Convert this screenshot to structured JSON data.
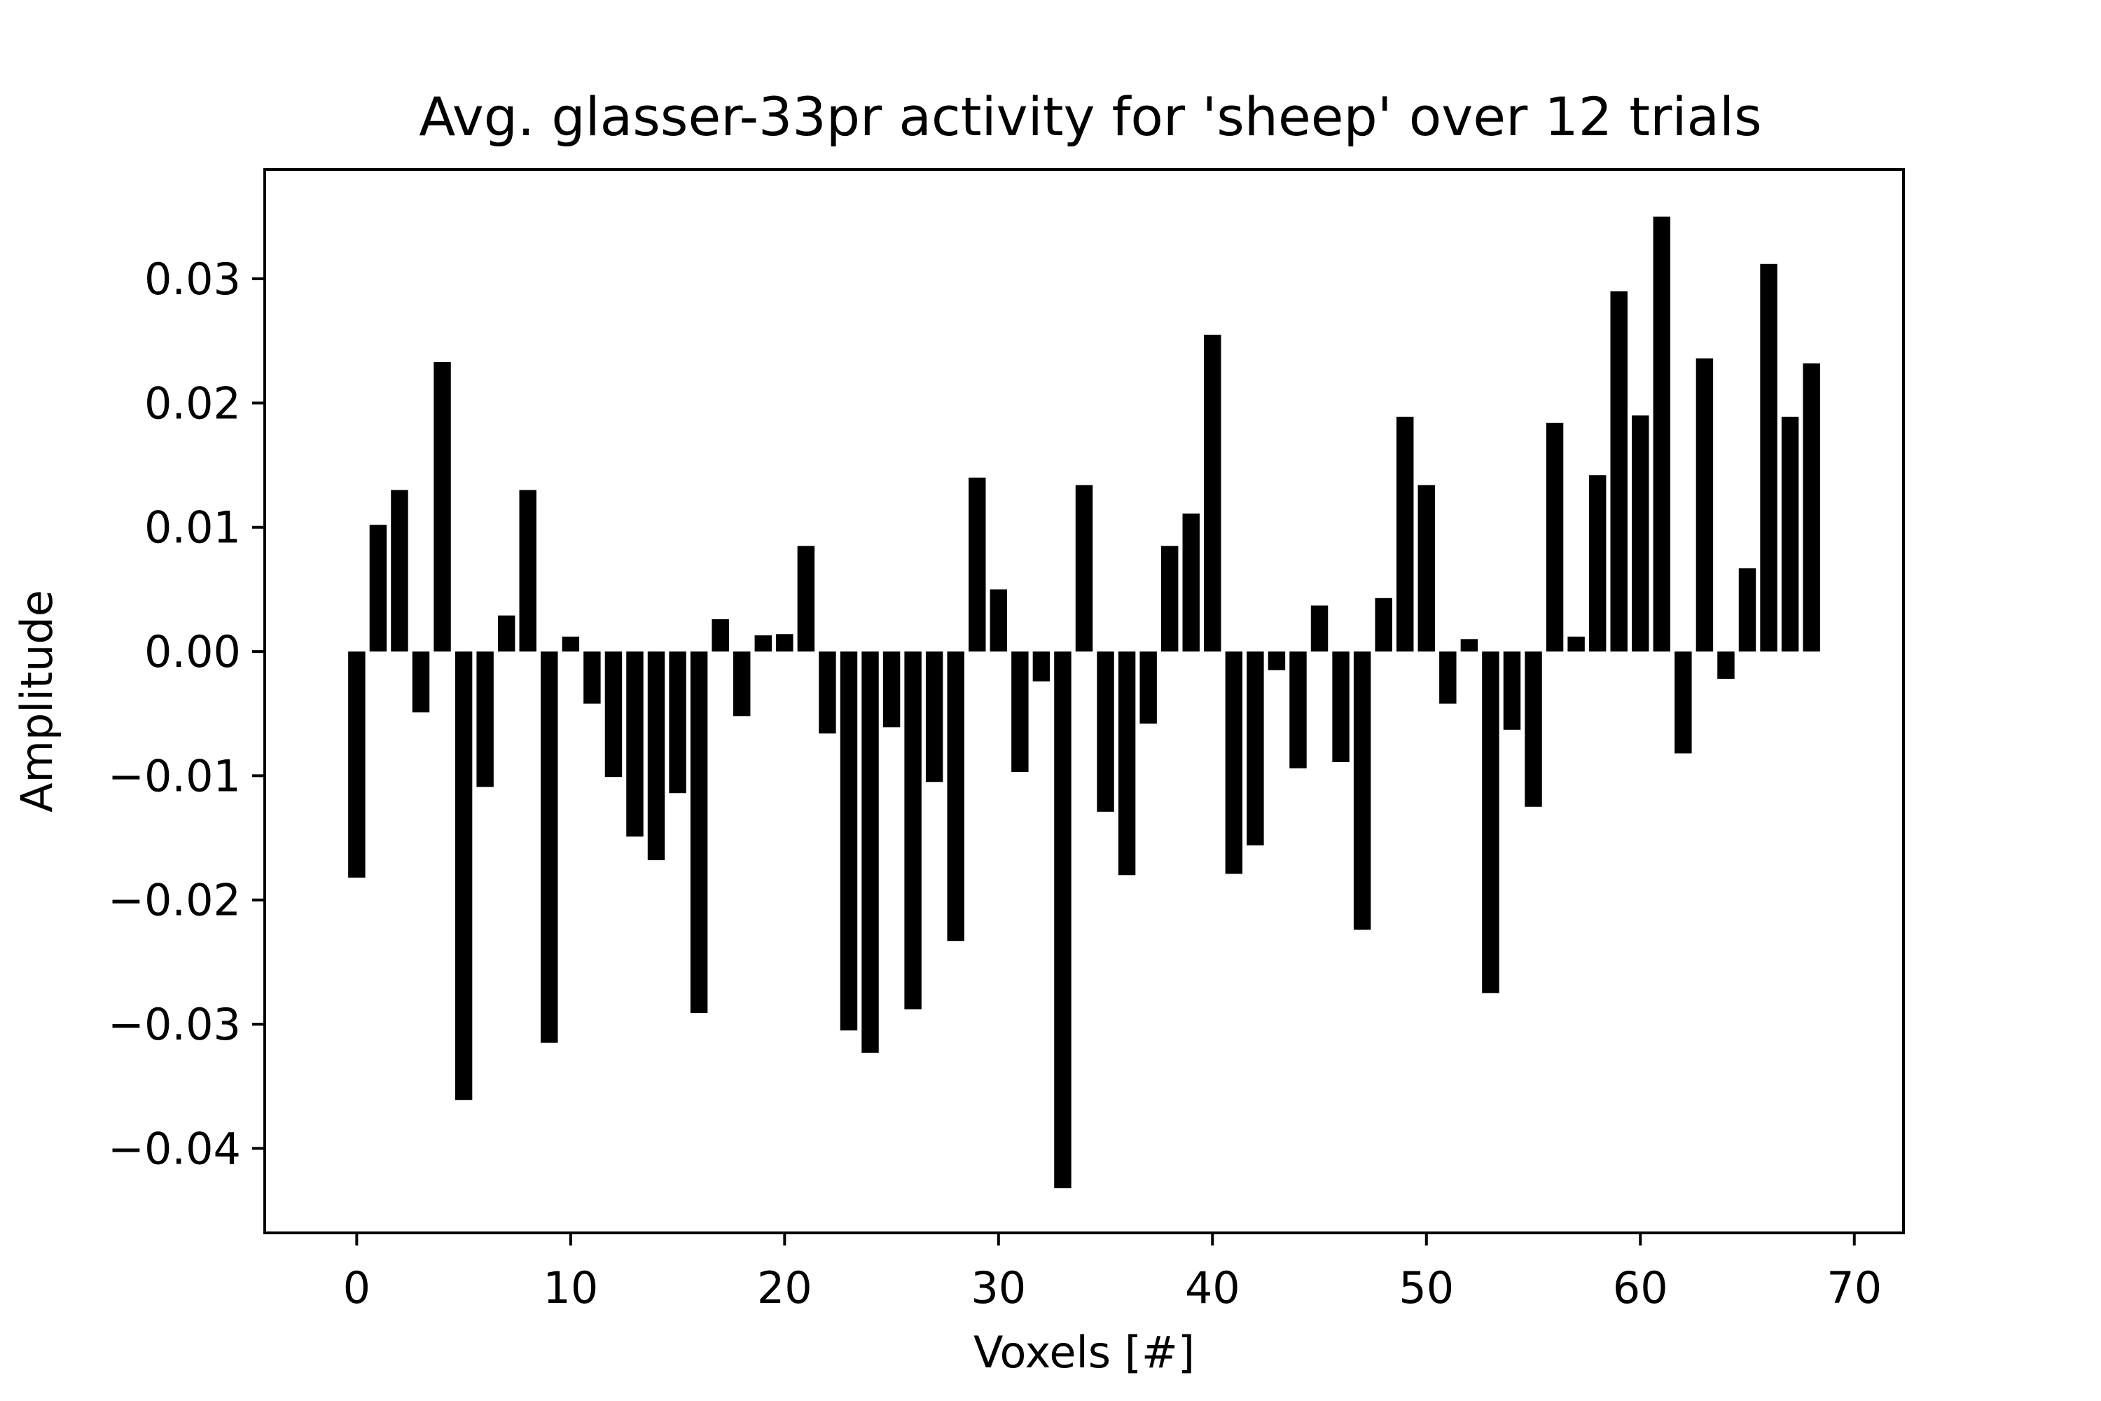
{
  "chart_data": {
    "type": "bar",
    "title": "Avg. glasser-33pr activity for 'sheep' over 12 trials",
    "xlabel": "Voxels [#]",
    "ylabel": "Amplitude",
    "xlim": [
      -4.3,
      72.3
    ],
    "ylim": [
      -0.0468,
      0.0388
    ],
    "grid": false,
    "bar_color": "#000000",
    "x": [
      0,
      1,
      2,
      3,
      4,
      5,
      6,
      7,
      8,
      9,
      10,
      11,
      12,
      13,
      14,
      15,
      16,
      17,
      18,
      19,
      20,
      21,
      22,
      23,
      24,
      25,
      26,
      27,
      28,
      29,
      30,
      31,
      32,
      33,
      34,
      35,
      36,
      37,
      38,
      39,
      40,
      41,
      42,
      43,
      44,
      45,
      46,
      47,
      48,
      49,
      50,
      51,
      52,
      53,
      54,
      55,
      56,
      57,
      58,
      59,
      60,
      61,
      62,
      63,
      64,
      65,
      66,
      67,
      68
    ],
    "values": [
      -0.0182,
      0.0102,
      0.013,
      -0.0049,
      0.0233,
      -0.0361,
      -0.0109,
      0.0029,
      0.013,
      -0.0315,
      0.0012,
      -0.0042,
      -0.0101,
      -0.0149,
      -0.0168,
      -0.0114,
      -0.0291,
      0.0026,
      -0.0052,
      0.0013,
      0.0014,
      0.0085,
      -0.0066,
      -0.0305,
      -0.0323,
      -0.0061,
      -0.0288,
      -0.0105,
      -0.0233,
      0.014,
      0.005,
      -0.0097,
      -0.0024,
      -0.0432,
      0.0134,
      -0.0129,
      -0.018,
      -0.0058,
      0.0085,
      0.0111,
      0.0255,
      -0.0179,
      -0.0156,
      -0.0015,
      -0.0094,
      0.0037,
      -0.0089,
      -0.0224,
      0.0043,
      0.0189,
      0.0134,
      -0.0042,
      0.001,
      -0.0275,
      -0.0063,
      -0.0125,
      0.0184,
      0.0012,
      0.0142,
      0.029,
      0.019,
      0.035,
      -0.0082,
      0.0236,
      -0.0022,
      0.0067,
      0.0312,
      0.0189,
      0.0232
    ],
    "xticks": [
      0,
      10,
      20,
      30,
      40,
      50,
      60,
      70
    ],
    "xtick_labels": [
      "0",
      "10",
      "20",
      "30",
      "40",
      "50",
      "60",
      "70"
    ],
    "yticks": [
      -0.04,
      -0.03,
      -0.02,
      -0.01,
      0.0,
      0.01,
      0.02,
      0.03
    ],
    "ytick_labels": [
      "−0.04",
      "−0.03",
      "−0.02",
      "−0.01",
      "0.00",
      "0.01",
      "0.02",
      "0.03"
    ]
  }
}
